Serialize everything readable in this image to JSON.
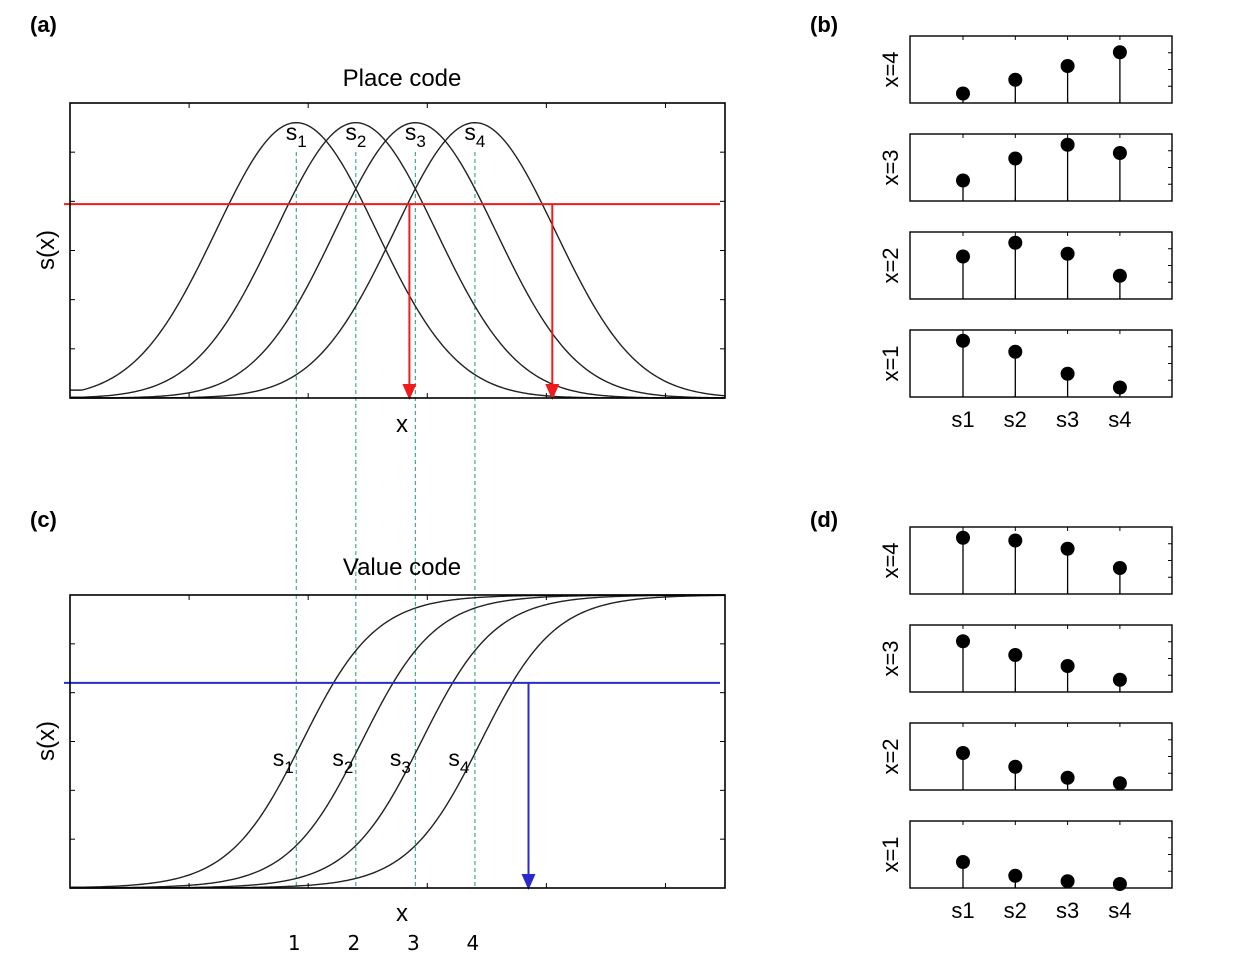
{
  "figure": {
    "panels": {
      "a": "(a)",
      "b": "(b)",
      "c": "(c)",
      "d": "(d)"
    },
    "colors": {
      "curve": "#222222",
      "guide": "#2aa87e",
      "place_threshold": "#ee1c1c",
      "value_threshold": "#2b2bcc"
    }
  },
  "chart_data": [
    {
      "id": "a",
      "type": "line",
      "title": "Place code",
      "xlabel": "x",
      "ylabel": "s(x)",
      "curve_kind": "gaussian",
      "series": [
        {
          "name": "s",
          "sub": "1",
          "center": 1.0
        },
        {
          "name": "s",
          "sub": "2",
          "center": 2.0
        },
        {
          "name": "s",
          "sub": "3",
          "center": 3.0
        },
        {
          "name": "s",
          "sub": "4",
          "center": 4.0
        }
      ],
      "curve_width": 1.35,
      "guide_lines_x": [
        1,
        2,
        3,
        4
      ],
      "threshold_y": 0.69,
      "arrows_x": [
        2.9,
        5.3
      ],
      "xlim": [
        -2.8,
        8.2
      ],
      "ylim": [
        0,
        1.05
      ],
      "grid": false
    },
    {
      "id": "c",
      "type": "line",
      "title": "Value code",
      "xlabel": "x",
      "ylabel": "s(x)",
      "curve_kind": "sigmoid",
      "series": [
        {
          "name": "s",
          "sub": "1",
          "center": 1.0
        },
        {
          "name": "s",
          "sub": "2",
          "center": 2.0
        },
        {
          "name": "s",
          "sub": "3",
          "center": 3.0
        },
        {
          "name": "s",
          "sub": "4",
          "center": 4.0
        }
      ],
      "curve_slope": 0.62,
      "guide_lines_x": [
        1,
        2,
        3,
        4
      ],
      "guide_labels": [
        "1",
        "2",
        "3",
        "4"
      ],
      "threshold_y": 0.7,
      "arrows_x": [
        4.9
      ],
      "xlim": [
        -2.8,
        8.2
      ],
      "ylim": [
        0,
        1.0
      ],
      "grid": false
    },
    {
      "id": "b",
      "type": "scatter",
      "subtype": "stem",
      "categories": [
        "s1",
        "s2",
        "s3",
        "s4"
      ],
      "rows": [
        {
          "label": "x=4",
          "values": [
            0.1,
            0.35,
            0.6,
            0.85
          ]
        },
        {
          "label": "x=3",
          "values": [
            0.3,
            0.7,
            0.95,
            0.8
          ]
        },
        {
          "label": "x=2",
          "values": [
            0.7,
            0.95,
            0.75,
            0.35
          ]
        },
        {
          "label": "x=1",
          "values": [
            0.95,
            0.75,
            0.35,
            0.1
          ]
        }
      ],
      "ylim": [
        0,
        1
      ]
    },
    {
      "id": "d",
      "type": "scatter",
      "subtype": "stem",
      "categories": [
        "s1",
        "s2",
        "s3",
        "s4"
      ],
      "rows": [
        {
          "label": "x=4",
          "values": [
            0.95,
            0.9,
            0.75,
            0.4
          ]
        },
        {
          "label": "x=3",
          "values": [
            0.85,
            0.6,
            0.4,
            0.15
          ]
        },
        {
          "label": "x=2",
          "values": [
            0.6,
            0.35,
            0.15,
            0.05
          ]
        },
        {
          "label": "x=1",
          "values": [
            0.4,
            0.15,
            0.05,
            0.0
          ]
        }
      ],
      "ylim": [
        0,
        1
      ]
    }
  ]
}
